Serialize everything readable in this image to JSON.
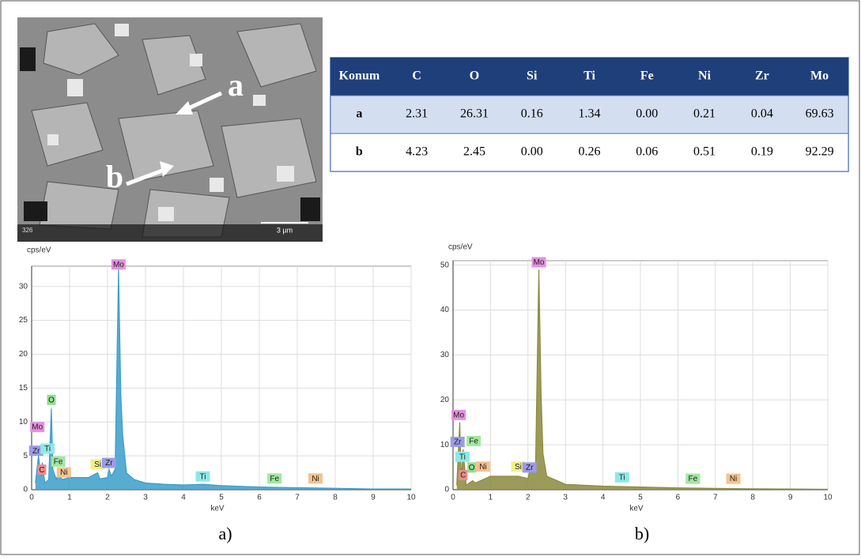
{
  "sem_image": {
    "labels": [
      "a",
      "b"
    ],
    "scale_bar": "3 µm",
    "id": "326"
  },
  "table": {
    "header": [
      "Konum",
      "C",
      "O",
      "Si",
      "Ti",
      "Fe",
      "Ni",
      "Zr",
      "Mo"
    ],
    "rows": [
      [
        "a",
        "2.31",
        "26.31",
        "0.16",
        "1.34",
        "0.00",
        "0.21",
        "0.04",
        "69.63"
      ],
      [
        "b",
        "4.23",
        "2.45",
        "0.00",
        "0.26",
        "0.06",
        "0.51",
        "0.19",
        "92.29"
      ]
    ]
  },
  "chart_data": [
    {
      "type": "area",
      "caption": "a)",
      "ylabel": "cps/eV",
      "xlabel": "keV",
      "color": "#3a9ec9",
      "x": [
        0.1,
        0.18,
        0.25,
        0.28,
        0.35,
        0.45,
        0.52,
        0.56,
        0.65,
        0.7,
        0.8,
        1.0,
        1.5,
        1.74,
        1.8,
        2.0,
        2.04,
        2.1,
        2.2,
        2.29,
        2.35,
        2.4,
        2.5,
        2.7,
        3.0,
        3.5,
        4.0,
        4.5,
        5.0,
        6.0,
        7.0,
        8.0,
        9.0,
        10.0
      ],
      "values": [
        1,
        5,
        2,
        4,
        1,
        1.5,
        12,
        3,
        1.5,
        2.5,
        1.5,
        1.8,
        1.8,
        2.5,
        1.6,
        1.8,
        3,
        2,
        3,
        32.5,
        14,
        8,
        2.5,
        1.5,
        1,
        0.8,
        0.7,
        0.8,
        0.6,
        0.4,
        0.3,
        0.2,
        0.1,
        0.1
      ],
      "xlim": [
        0,
        10
      ],
      "xticks": [
        0,
        1,
        2,
        3,
        4,
        5,
        6,
        7,
        8,
        9,
        10
      ],
      "ylim": [
        0,
        33
      ],
      "yticks": [
        0,
        5,
        10,
        15,
        20,
        25,
        30
      ],
      "grid": true,
      "peak_labels": [
        {
          "text": "Mo",
          "x": 2.29,
          "y": 32.5,
          "color": "#e58fe0"
        },
        {
          "text": "O",
          "x": 0.52,
          "y": 12.5,
          "color": "#8fe08f"
        },
        {
          "text": "Mo",
          "x": 0.15,
          "y": 8.5,
          "color": "#e58fe0"
        },
        {
          "text": "Zr",
          "x": 0.12,
          "y": 5,
          "color": "#9b9be8"
        },
        {
          "text": "Ti",
          "x": 0.42,
          "y": 5.3,
          "color": "#8fe8e8"
        },
        {
          "text": "C",
          "x": 0.27,
          "y": 2.2,
          "color": "#f08a8a"
        },
        {
          "text": "Fe",
          "x": 0.7,
          "y": 3.4,
          "color": "#a0e8a0"
        },
        {
          "text": "Ni",
          "x": 0.85,
          "y": 1.8,
          "color": "#f5c28f"
        },
        {
          "text": "Si",
          "x": 1.74,
          "y": 3,
          "color": "#f0f08a"
        },
        {
          "text": "Zr",
          "x": 2.04,
          "y": 3.2,
          "color": "#9b9be8"
        },
        {
          "text": "Ti",
          "x": 4.51,
          "y": 1.2,
          "color": "#8fe8e8"
        },
        {
          "text": "Fe",
          "x": 6.4,
          "y": 0.9,
          "color": "#a0e8a0"
        },
        {
          "text": "Ni",
          "x": 7.48,
          "y": 0.9,
          "color": "#f5c28f"
        }
      ]
    },
    {
      "type": "area",
      "caption": "b)",
      "ylabel": "cps/eV",
      "xlabel": "keV",
      "color": "#8a8a3c",
      "x": [
        0.1,
        0.18,
        0.22,
        0.27,
        0.35,
        0.52,
        0.6,
        1.0,
        1.5,
        1.74,
        2.0,
        2.04,
        2.2,
        2.29,
        2.35,
        2.4,
        2.5,
        3.0,
        4.0,
        5.0,
        6.0,
        7.0,
        8.0,
        10.0
      ],
      "values": [
        1,
        15,
        2,
        9,
        1,
        2,
        1.5,
        3,
        3,
        3,
        2.5,
        4,
        4,
        49,
        21,
        8,
        3,
        1.2,
        0.8,
        0.6,
        0.4,
        0.3,
        0.2,
        0.1
      ],
      "xlim": [
        0,
        10
      ],
      "xticks": [
        0,
        1,
        2,
        3,
        4,
        5,
        6,
        7,
        8,
        9,
        10
      ],
      "ylim": [
        0,
        51
      ],
      "yticks": [
        0,
        10,
        20,
        30,
        40,
        50
      ],
      "grid": true,
      "peak_labels": [
        {
          "text": "Mo",
          "x": 2.29,
          "y": 49.5,
          "color": "#e58fe0"
        },
        {
          "text": "Mo",
          "x": 0.15,
          "y": 15.5,
          "color": "#e58fe0"
        },
        {
          "text": "Zr",
          "x": 0.12,
          "y": 9.5,
          "color": "#9b9be8"
        },
        {
          "text": "Fe",
          "x": 0.55,
          "y": 9.7,
          "color": "#a0e8a0"
        },
        {
          "text": "Ti",
          "x": 0.25,
          "y": 6.2,
          "color": "#8fe8e8"
        },
        {
          "text": "O",
          "x": 0.5,
          "y": 3.8,
          "color": "#8fe08f"
        },
        {
          "text": "Ni",
          "x": 0.8,
          "y": 4,
          "color": "#f5c28f"
        },
        {
          "text": "C",
          "x": 0.27,
          "y": 2.1,
          "color": "#f08a8a"
        },
        {
          "text": "Si",
          "x": 1.74,
          "y": 4,
          "color": "#f0f08a"
        },
        {
          "text": "Zr",
          "x": 2.04,
          "y": 3.8,
          "color": "#9b9be8"
        },
        {
          "text": "Ti",
          "x": 4.51,
          "y": 1.6,
          "color": "#8fe8e8"
        },
        {
          "text": "Fe",
          "x": 6.4,
          "y": 1.3,
          "color": "#a0e8a0"
        },
        {
          "text": "Ni",
          "x": 7.48,
          "y": 1.3,
          "color": "#f5c28f"
        }
      ]
    }
  ]
}
